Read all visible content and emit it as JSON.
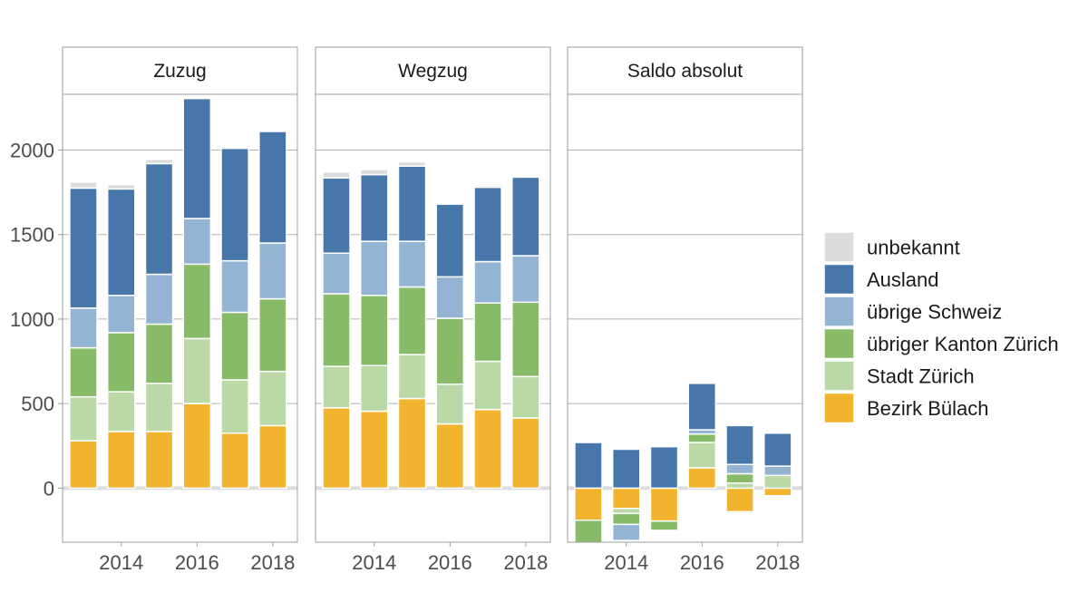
{
  "chart_data": {
    "type": "bar",
    "stacked": true,
    "facets": [
      "Zuzug",
      "Wegzug",
      "Saldo absolut"
    ],
    "x": [
      2013,
      2014,
      2015,
      2016,
      2017,
      2018
    ],
    "x_ticks": [
      2014,
      2016,
      2018
    ],
    "x_tick_labels": [
      "2014",
      "2016",
      "2018"
    ],
    "y_ticks": [
      0,
      500,
      1000,
      1500,
      2000
    ],
    "y_tick_labels": [
      "0",
      "500",
      "1000",
      "1500",
      "2000"
    ],
    "ylim": [
      -320,
      2330
    ],
    "xlabel": "",
    "ylabel": "",
    "grid": true,
    "legend_position": "right",
    "legend_order": [
      "unbekannt",
      "Ausland",
      "übrige Schweiz",
      "übriger Kanton Zürich",
      "Stadt Zürich",
      "Bezirk Bülach"
    ],
    "series": [
      {
        "name": "Bezirk Bülach",
        "color": "#f2b42f",
        "values": {
          "Zuzug": [
            280,
            335,
            335,
            500,
            325,
            370
          ],
          "Wegzug": [
            475,
            455,
            530,
            380,
            465,
            415
          ],
          "Saldo absolut": [
            -190,
            -120,
            -195,
            120,
            -140,
            -45
          ]
        }
      },
      {
        "name": "Stadt Zürich",
        "color": "#bad9a7",
        "values": {
          "Zuzug": [
            260,
            235,
            285,
            385,
            315,
            320
          ],
          "Wegzug": [
            245,
            270,
            260,
            235,
            285,
            245
          ],
          "Saldo absolut": [
            0,
            -30,
            0,
            150,
            30,
            75
          ]
        }
      },
      {
        "name": "übriger Kanton Zürich",
        "color": "#88bb68",
        "values": {
          "Zuzug": [
            290,
            350,
            350,
            440,
            400,
            430
          ],
          "Wegzug": [
            430,
            415,
            400,
            390,
            345,
            440
          ],
          "Saldo absolut": [
            -135,
            -65,
            -55,
            50,
            55,
            0
          ]
        }
      },
      {
        "name": "übrige Schweiz",
        "color": "#93b4d3",
        "values": {
          "Zuzug": [
            235,
            220,
            295,
            270,
            305,
            330
          ],
          "Wegzug": [
            240,
            320,
            270,
            245,
            245,
            275
          ],
          "Saldo absolut": [
            0,
            -95,
            0,
            25,
            55,
            55
          ]
        }
      },
      {
        "name": "Ausland",
        "color": "#4777aa",
        "values": {
          "Zuzug": [
            710,
            630,
            655,
            710,
            665,
            660
          ],
          "Wegzug": [
            445,
            395,
            445,
            430,
            440,
            465
          ],
          "Saldo absolut": [
            270,
            230,
            245,
            275,
            230,
            195
          ]
        }
      },
      {
        "name": "unbekannt",
        "color": "#dcdcdc",
        "values": {
          "Zuzug": [
            35,
            25,
            25,
            0,
            0,
            0
          ],
          "Wegzug": [
            35,
            30,
            25,
            0,
            10,
            5
          ],
          "Saldo absolut": [
            0,
            0,
            0,
            0,
            -10,
            -5
          ]
        }
      }
    ]
  }
}
